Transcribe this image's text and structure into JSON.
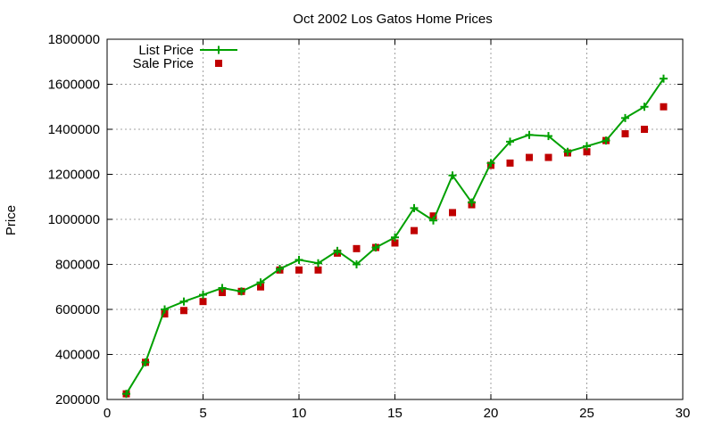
{
  "chart_data": {
    "type": "line",
    "title": "Oct 2002 Los Gatos Home Prices",
    "xlabel": "",
    "ylabel": "Price",
    "xlim": [
      0,
      30
    ],
    "ylim": [
      200000,
      1800000
    ],
    "xticks": [
      0,
      5,
      10,
      15,
      20,
      25,
      30
    ],
    "yticks": [
      200000,
      400000,
      600000,
      800000,
      1000000,
      1200000,
      1400000,
      1600000,
      1800000
    ],
    "grid": true,
    "legend_position": "top-left",
    "series": [
      {
        "name": "List Price",
        "style": "line-with-plus-markers",
        "color": "#00a000",
        "x": [
          1,
          2,
          3,
          4,
          5,
          6,
          7,
          8,
          9,
          10,
          11,
          12,
          13,
          14,
          15,
          16,
          17,
          18,
          19,
          20,
          21,
          22,
          23,
          24,
          25,
          26,
          27,
          28,
          29
        ],
        "y": [
          225000,
          365000,
          600000,
          635000,
          665000,
          695000,
          680000,
          720000,
          780000,
          820000,
          805000,
          860000,
          800000,
          875000,
          920000,
          1050000,
          995000,
          1195000,
          1075000,
          1250000,
          1345000,
          1375000,
          1370000,
          1300000,
          1325000,
          1350000,
          1450000,
          1500000,
          1625000
        ]
      },
      {
        "name": "Sale Price",
        "style": "square-markers",
        "color": "#c00000",
        "x": [
          1,
          2,
          3,
          4,
          5,
          6,
          7,
          8,
          9,
          10,
          11,
          12,
          13,
          14,
          15,
          16,
          17,
          18,
          19,
          20,
          21,
          22,
          23,
          24,
          25,
          26,
          27,
          28,
          29
        ],
        "y": [
          225000,
          365000,
          580000,
          595000,
          635000,
          675000,
          680000,
          700000,
          775000,
          775000,
          775000,
          850000,
          870000,
          875000,
          895000,
          950000,
          1015000,
          1030000,
          1065000,
          1240000,
          1250000,
          1275000,
          1275000,
          1295000,
          1300000,
          1350000,
          1380000,
          1400000,
          1500000
        ]
      }
    ]
  }
}
